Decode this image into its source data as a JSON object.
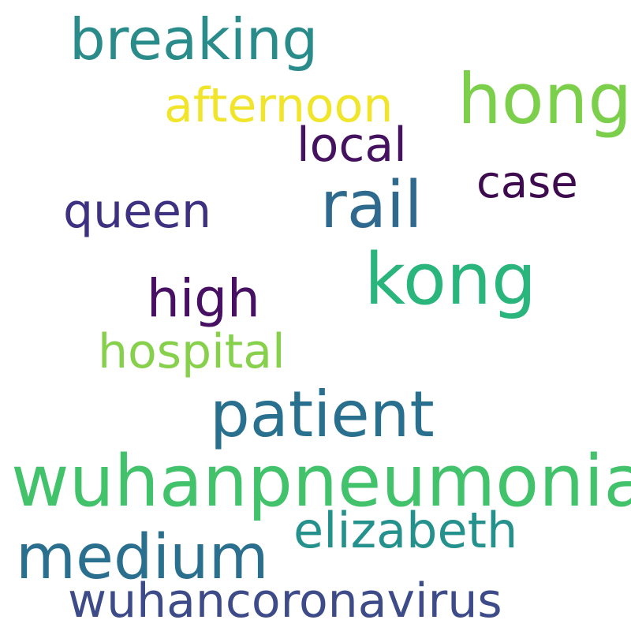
{
  "words": {
    "breaking": "breaking",
    "hong": "hong",
    "afternoon": "afternoon",
    "local": "local",
    "case": "case",
    "rail": "rail",
    "queen": "queen",
    "kong": "kong",
    "high": "high",
    "hospital": "hospital",
    "patient": "patient",
    "wuhanpneumonia": "wuhanpneumonia",
    "elizabeth": "elizabeth",
    "medium": "medium",
    "wuhancoronavirus": "wuhancoronavirus"
  },
  "colors": {
    "background": "#ffffff",
    "palette": "viridis"
  }
}
